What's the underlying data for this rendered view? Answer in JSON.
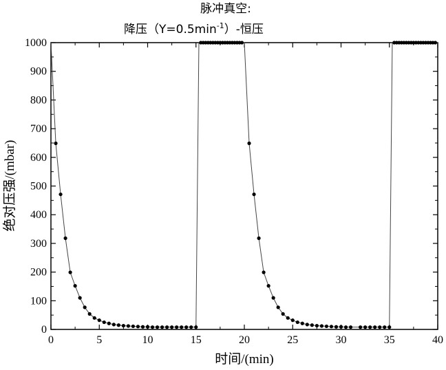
{
  "chart_data": {
    "type": "scatter",
    "title": "脉冲真空:",
    "subtitle": {
      "prefix": "降压（Y=0.5min",
      "superscript": "-1",
      "suffix": "）-恒压"
    },
    "xlabel": "时间/(min)",
    "ylabel": "绝对压强/(mbar)",
    "xlim": [
      0,
      40
    ],
    "ylim": [
      0,
      1000
    ],
    "x_ticks": [
      0,
      5,
      10,
      15,
      20,
      25,
      30,
      35,
      40
    ],
    "y_ticks": [
      0,
      100,
      200,
      300,
      400,
      500,
      600,
      700,
      800,
      900,
      1000
    ],
    "grid": false,
    "legend": "none",
    "series": [
      {
        "line": [
          [
            0,
            1000
          ],
          [
            0.5,
            649
          ],
          [
            1,
            471
          ],
          [
            1.5,
            318
          ],
          [
            2,
            199
          ],
          [
            2.5,
            152
          ],
          [
            3,
            110
          ],
          [
            3.5,
            77
          ],
          [
            4,
            54
          ],
          [
            4.5,
            40
          ],
          [
            5,
            32
          ],
          [
            5.5,
            25
          ],
          [
            6,
            21
          ],
          [
            6.5,
            17
          ],
          [
            7,
            15
          ],
          [
            7.5,
            13
          ],
          [
            8,
            12
          ],
          [
            8.5,
            11
          ],
          [
            9,
            10
          ],
          [
            9.5,
            9
          ],
          [
            10,
            9
          ],
          [
            10.5,
            8
          ],
          [
            11,
            8
          ],
          [
            11.5,
            8
          ],
          [
            12,
            8
          ],
          [
            12.5,
            8
          ],
          [
            13,
            8
          ],
          [
            13.5,
            8
          ],
          [
            14,
            8
          ],
          [
            14.5,
            8
          ],
          [
            15,
            8
          ],
          [
            15.3,
            1000
          ],
          [
            15.5,
            1000
          ],
          [
            16,
            1000
          ],
          [
            17,
            1000
          ],
          [
            18,
            1000
          ],
          [
            19,
            1000
          ],
          [
            20,
            1000
          ],
          [
            20.5,
            649
          ],
          [
            21,
            471
          ],
          [
            21.5,
            318
          ],
          [
            22,
            199
          ],
          [
            22.5,
            152
          ],
          [
            23,
            110
          ],
          [
            23.5,
            77
          ],
          [
            24,
            54
          ],
          [
            24.5,
            40
          ],
          [
            25,
            32
          ],
          [
            25.5,
            25
          ],
          [
            26,
            21
          ],
          [
            26.5,
            17
          ],
          [
            27,
            15
          ],
          [
            27.5,
            13
          ],
          [
            28,
            12
          ],
          [
            28.5,
            11
          ],
          [
            29,
            10
          ],
          [
            29.5,
            9
          ],
          [
            30,
            9
          ],
          [
            30.5,
            8
          ],
          [
            31,
            8
          ],
          [
            32,
            8
          ],
          [
            33,
            8
          ],
          [
            34,
            8
          ],
          [
            35,
            8
          ],
          [
            35.3,
            1000
          ],
          [
            36,
            1000
          ],
          [
            37,
            1000
          ],
          [
            38,
            1000
          ],
          [
            39,
            1000
          ],
          [
            40,
            1000
          ]
        ],
        "markers": [
          [
            0.5,
            649
          ],
          [
            1,
            471
          ],
          [
            1.5,
            318
          ],
          [
            2,
            199
          ],
          [
            2.5,
            152
          ],
          [
            3,
            110
          ],
          [
            3.5,
            77
          ],
          [
            4,
            54
          ],
          [
            4.5,
            40
          ],
          [
            5,
            32
          ],
          [
            5.5,
            25
          ],
          [
            6,
            21
          ],
          [
            6.5,
            17
          ],
          [
            7,
            15
          ],
          [
            7.5,
            13
          ],
          [
            8,
            12
          ],
          [
            8.5,
            11
          ],
          [
            9,
            10
          ],
          [
            9.5,
            9
          ],
          [
            10,
            9
          ],
          [
            10.5,
            8
          ],
          [
            11,
            8
          ],
          [
            11.5,
            8
          ],
          [
            12,
            8
          ],
          [
            12.5,
            8
          ],
          [
            13,
            8
          ],
          [
            13.5,
            8
          ],
          [
            14,
            8
          ],
          [
            14.5,
            8
          ],
          [
            15,
            8
          ],
          [
            15.5,
            1000
          ],
          [
            15.75,
            1000
          ],
          [
            16,
            1000
          ],
          [
            16.25,
            1000
          ],
          [
            16.5,
            1000
          ],
          [
            16.75,
            1000
          ],
          [
            17,
            1000
          ],
          [
            17.25,
            1000
          ],
          [
            17.5,
            1000
          ],
          [
            17.75,
            1000
          ],
          [
            18,
            1000
          ],
          [
            18.25,
            1000
          ],
          [
            18.5,
            1000
          ],
          [
            18.75,
            1000
          ],
          [
            19,
            1000
          ],
          [
            19.25,
            1000
          ],
          [
            19.5,
            1000
          ],
          [
            19.75,
            1000
          ],
          [
            20.5,
            649
          ],
          [
            21,
            471
          ],
          [
            21.5,
            318
          ],
          [
            22,
            199
          ],
          [
            22.5,
            152
          ],
          [
            23,
            110
          ],
          [
            23.5,
            77
          ],
          [
            24,
            54
          ],
          [
            24.5,
            40
          ],
          [
            25,
            32
          ],
          [
            25.5,
            25
          ],
          [
            26,
            21
          ],
          [
            26.5,
            17
          ],
          [
            27,
            15
          ],
          [
            27.5,
            13
          ],
          [
            28,
            12
          ],
          [
            28.5,
            11
          ],
          [
            29,
            10
          ],
          [
            29.5,
            9
          ],
          [
            30,
            9
          ],
          [
            30.5,
            8
          ],
          [
            31,
            8
          ],
          [
            32,
            8
          ],
          [
            32.5,
            8
          ],
          [
            33,
            8
          ],
          [
            33.5,
            8
          ],
          [
            34,
            8
          ],
          [
            34.5,
            8
          ],
          [
            35,
            8
          ],
          [
            35.5,
            1000
          ],
          [
            35.75,
            1000
          ],
          [
            36,
            1000
          ],
          [
            36.25,
            1000
          ],
          [
            36.5,
            1000
          ],
          [
            36.75,
            1000
          ],
          [
            37,
            1000
          ],
          [
            37.25,
            1000
          ],
          [
            37.5,
            1000
          ],
          [
            37.75,
            1000
          ],
          [
            38,
            1000
          ],
          [
            38.25,
            1000
          ],
          [
            38.5,
            1000
          ],
          [
            38.75,
            1000
          ],
          [
            39,
            1000
          ],
          [
            39.25,
            1000
          ],
          [
            39.5,
            1000
          ],
          [
            39.75,
            1000
          ]
        ]
      }
    ],
    "colors": {
      "line": "#444444",
      "marker": "#000000",
      "axis": "#000000"
    }
  }
}
